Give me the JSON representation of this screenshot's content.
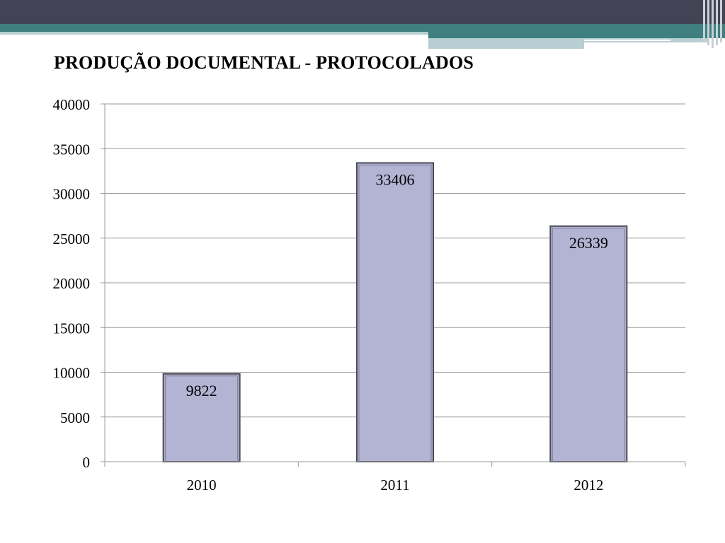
{
  "slide": {
    "title": "PRODUÇÃO DOCUMENTAL - PROTOCOLADOS",
    "colors": {
      "banner_dark": "#434356",
      "banner_teal": "#3f7f80",
      "banner_light": "#b7cfd2",
      "bar_fill": "#b3b3d4",
      "bar_border": "#4a4a55",
      "gridline": "#9a9a9a"
    }
  },
  "chart_data": {
    "type": "bar",
    "title": "PRODUÇÃO DOCUMENTAL - PROTOCOLADOS",
    "categories": [
      "2010",
      "2011",
      "2012"
    ],
    "values": [
      9822,
      33406,
      26339
    ],
    "data_labels": [
      "9822",
      "33406",
      "26339"
    ],
    "ylim": [
      0,
      40000
    ],
    "yticks": [
      0,
      5000,
      10000,
      15000,
      20000,
      25000,
      30000,
      35000,
      40000
    ],
    "ytick_labels": [
      "0",
      "5000",
      "10000",
      "15000",
      "20000",
      "25000",
      "30000",
      "35000",
      "40000"
    ],
    "grid": true,
    "legend": "none",
    "xlabel": "",
    "ylabel": ""
  }
}
